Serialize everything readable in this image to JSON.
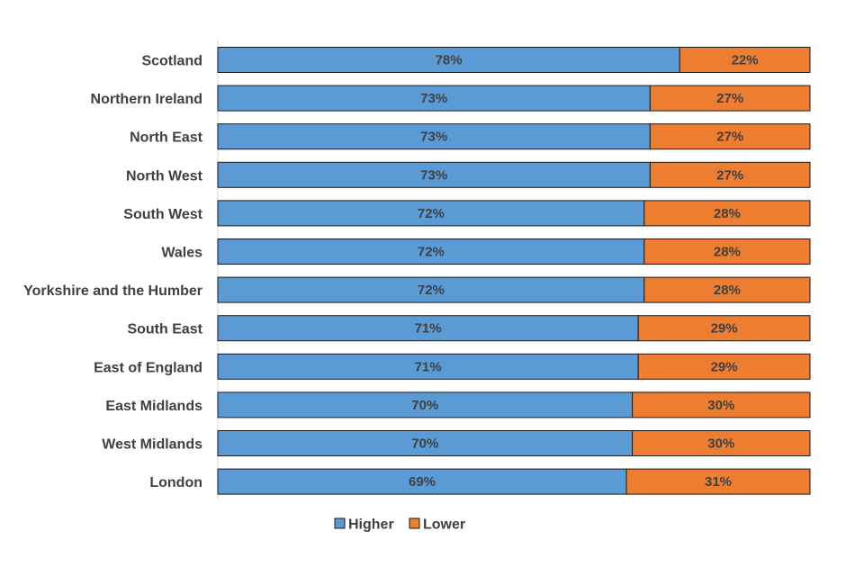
{
  "chart_data": {
    "type": "bar",
    "orientation": "horizontal",
    "stacked": true,
    "normalized_percent": true,
    "title": "",
    "xlabel": "",
    "ylabel": "",
    "xlim": [
      0,
      100
    ],
    "grid": false,
    "legend_position": "bottom",
    "categories": [
      "Scotland",
      "Northern Ireland",
      "North East",
      "North West",
      "South West",
      "Wales",
      "Yorkshire and the Humber",
      "South East",
      "East of England",
      "East Midlands",
      "West Midlands",
      "London"
    ],
    "series": [
      {
        "name": "Higher",
        "color": "#5B9BD5",
        "values": [
          78,
          73,
          73,
          73,
          72,
          72,
          72,
          71,
          71,
          70,
          70,
          69
        ],
        "labels": [
          "78%",
          "73%",
          "73%",
          "73%",
          "72%",
          "72%",
          "72%",
          "71%",
          "71%",
          "70%",
          "70%",
          "69%"
        ]
      },
      {
        "name": "Lower",
        "color": "#ED7D31",
        "values": [
          22,
          27,
          27,
          27,
          28,
          28,
          28,
          29,
          29,
          30,
          30,
          31
        ],
        "labels": [
          "22%",
          "27%",
          "27%",
          "27%",
          "28%",
          "28%",
          "28%",
          "29%",
          "29%",
          "30%",
          "30%",
          "31%"
        ]
      }
    ]
  }
}
